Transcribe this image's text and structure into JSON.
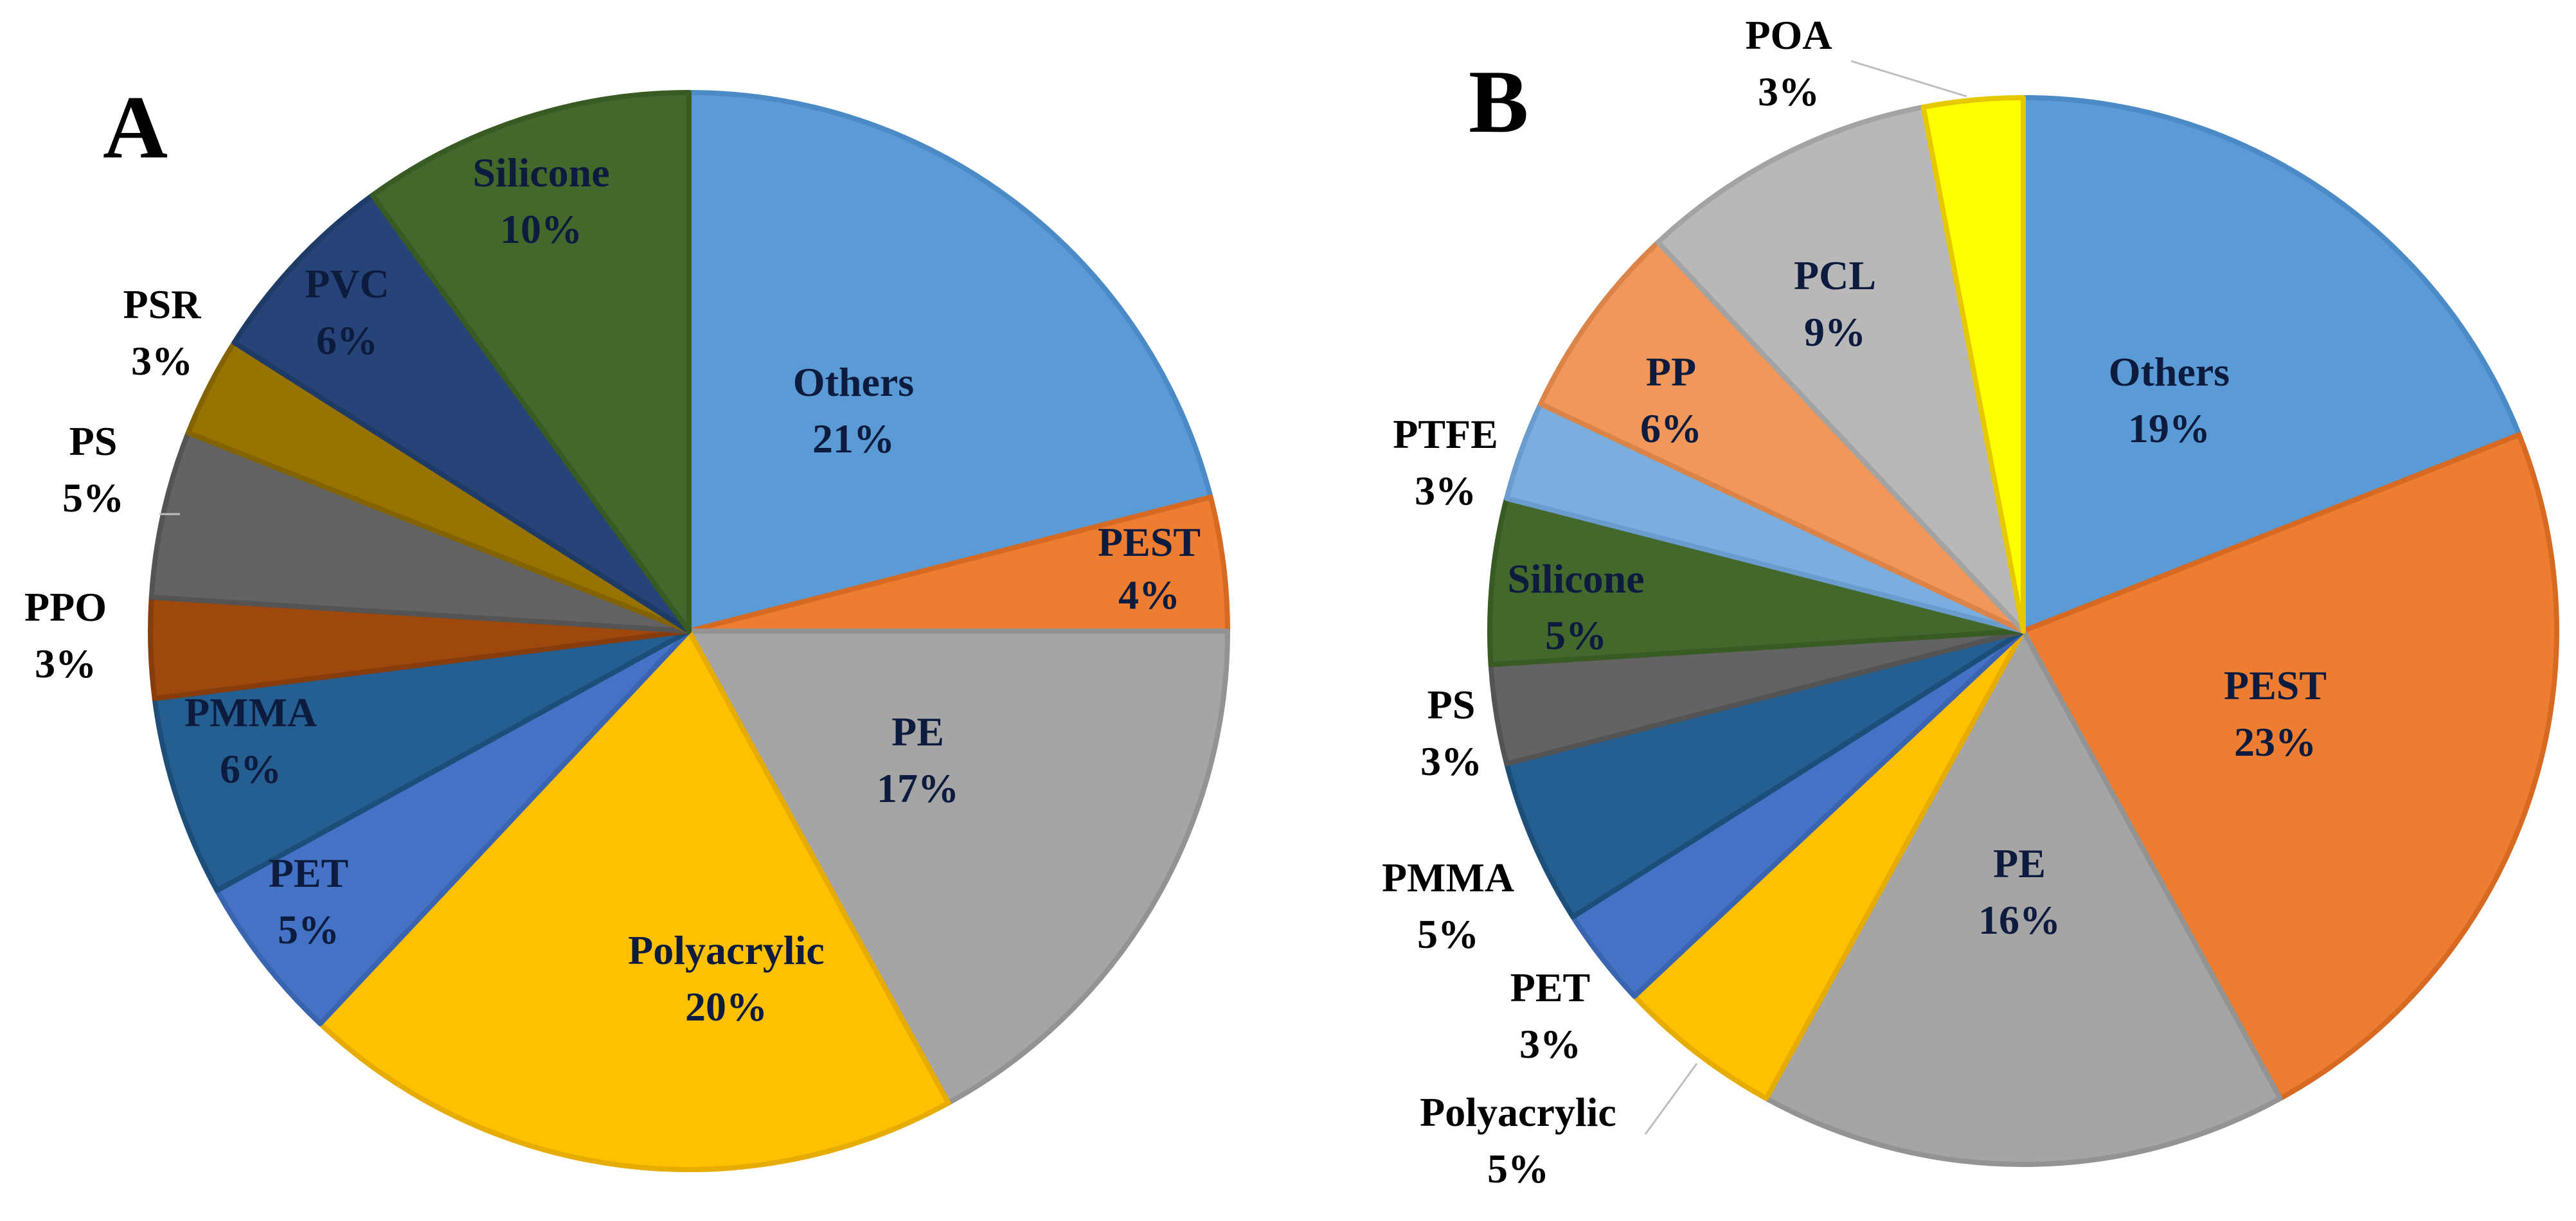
{
  "chart_data": [
    {
      "type": "pie",
      "panel_label": "A",
      "start": "12 o'clock",
      "direction": "clockwise",
      "slices": [
        {
          "label": "Others",
          "value": 21,
          "display": "21%",
          "color": "#5B9BD5",
          "border": "#4A8AC5",
          "label_inside": true
        },
        {
          "label": "PEST",
          "value": 4,
          "display": "4%",
          "color": "#ED7D31",
          "border": "#D66A22",
          "label_inside": true
        },
        {
          "label": "PE",
          "value": 17,
          "display": "17%",
          "color": "#A5A5A5",
          "border": "#939393",
          "label_inside": true
        },
        {
          "label": "Polyacrylic",
          "value": 20,
          "display": "20%",
          "color": "#FFC000",
          "border": "#E6AC00",
          "label_inside": true
        },
        {
          "label": "PET",
          "value": 5,
          "display": "5%",
          "color": "#4472C4",
          "border": "#3A64B0",
          "label_inside": true
        },
        {
          "label": "PMMA",
          "value": 6,
          "display": "6%",
          "color": "#255E91",
          "border": "#1D4E7A",
          "label_inside": true
        },
        {
          "label": "PPO",
          "value": 3,
          "display": "3%",
          "color": "#9E480E",
          "border": "#873C0B",
          "label_inside": false
        },
        {
          "label": "PS",
          "value": 5,
          "display": "5%",
          "color": "#636363",
          "border": "#545454",
          "label_inside": false
        },
        {
          "label": "PSR",
          "value": 3,
          "display": "3%",
          "color": "#997300",
          "border": "#836300",
          "label_inside": false
        },
        {
          "label": "PVC",
          "value": 6,
          "display": "6%",
          "color": "#264478",
          "border": "#1E3A66",
          "label_inside": true
        },
        {
          "label": "Silicone",
          "value": 10,
          "display": "10%",
          "color": "#43682B",
          "border": "#385A23",
          "label_inside": true
        }
      ]
    },
    {
      "type": "pie",
      "panel_label": "B",
      "start": "12 o'clock",
      "direction": "clockwise",
      "slices": [
        {
          "label": "Others",
          "value": 19,
          "display": "19%",
          "color": "#5B9BD5",
          "border": "#4A8AC5",
          "label_inside": true
        },
        {
          "label": "PEST",
          "value": 23,
          "display": "23%",
          "color": "#ED7D31",
          "border": "#D66A22",
          "label_inside": true
        },
        {
          "label": "PE",
          "value": 16,
          "display": "16%",
          "color": "#A5A5A5",
          "border": "#939393",
          "label_inside": true
        },
        {
          "label": "Polyacrylic",
          "value": 5,
          "display": "5%",
          "color": "#FFC000",
          "border": "#E6AC00",
          "label_inside": false
        },
        {
          "label": "PET",
          "value": 3,
          "display": "3%",
          "color": "#4472C4",
          "border": "#3A64B0",
          "label_inside": false
        },
        {
          "label": "PMMA",
          "value": 5,
          "display": "5%",
          "color": "#255E91",
          "border": "#1D4E7A",
          "label_inside": false
        },
        {
          "label": "PS",
          "value": 3,
          "display": "3%",
          "color": "#636363",
          "border": "#545454",
          "label_inside": false
        },
        {
          "label": "Silicone",
          "value": 5,
          "display": "5%",
          "color": "#43682B",
          "border": "#385A23",
          "label_inside": true
        },
        {
          "label": "PTFE",
          "value": 3,
          "display": "3%",
          "color": "#7BAEDE",
          "border": "#6A9DCD",
          "label_inside": false
        },
        {
          "label": "PP",
          "value": 6,
          "display": "6%",
          "color": "#F1975A",
          "border": "#DA8449",
          "label_inside": true
        },
        {
          "label": "PCL",
          "value": 9,
          "display": "9%",
          "color": "#B8B8B8",
          "border": "#A3A3A3",
          "label_inside": true
        },
        {
          "label": "POA",
          "value": 3,
          "display": "3%",
          "color": "#FFFF00",
          "border": "#E6C800",
          "label_inside": false
        }
      ]
    }
  ]
}
